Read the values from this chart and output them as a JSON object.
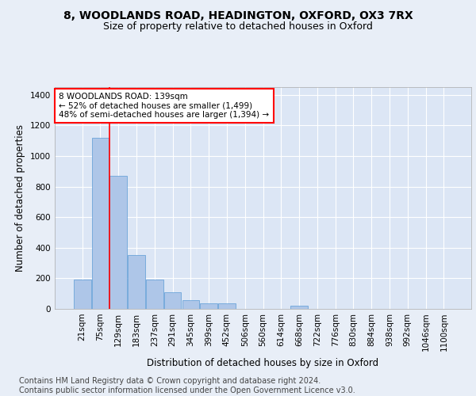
{
  "title_line1": "8, WOODLANDS ROAD, HEADINGTON, OXFORD, OX3 7RX",
  "title_line2": "Size of property relative to detached houses in Oxford",
  "xlabel": "Distribution of detached houses by size in Oxford",
  "ylabel": "Number of detached properties",
  "footnote": "Contains HM Land Registry data © Crown copyright and database right 2024.\nContains public sector information licensed under the Open Government Licence v3.0.",
  "bar_labels": [
    "21sqm",
    "75sqm",
    "129sqm",
    "183sqm",
    "237sqm",
    "291sqm",
    "345sqm",
    "399sqm",
    "452sqm",
    "506sqm",
    "560sqm",
    "614sqm",
    "668sqm",
    "722sqm",
    "776sqm",
    "830sqm",
    "884sqm",
    "938sqm",
    "992sqm",
    "1046sqm",
    "1100sqm"
  ],
  "bar_values": [
    190,
    1120,
    870,
    350,
    190,
    110,
    55,
    35,
    35,
    0,
    0,
    0,
    20,
    0,
    0,
    0,
    0,
    0,
    0,
    0,
    0
  ],
  "bar_color": "#aec6e8",
  "bar_edge_color": "#5b9bd5",
  "annotation_box_text": "8 WOODLANDS ROAD: 139sqm\n← 52% of detached houses are smaller (1,499)\n48% of semi-detached houses are larger (1,394) →",
  "property_line_x": 1.5,
  "ylim": [
    0,
    1450
  ],
  "yticks": [
    0,
    200,
    400,
    600,
    800,
    1000,
    1200,
    1400
  ],
  "background_color": "#e8eef7",
  "plot_bg_color": "#dce6f5",
  "grid_color": "#ffffff",
  "title_fontsize": 10,
  "subtitle_fontsize": 9,
  "axis_label_fontsize": 8.5,
  "tick_fontsize": 7.5,
  "footnote_fontsize": 7
}
